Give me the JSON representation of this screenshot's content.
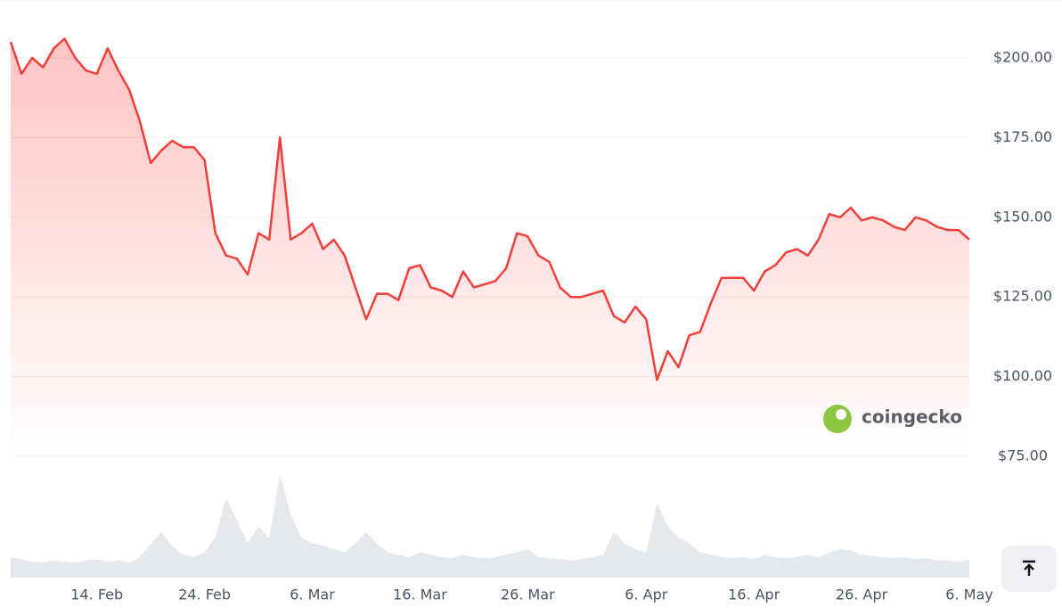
{
  "chart_data": [
    {
      "type": "line",
      "color": "#f23f3a",
      "categories": [
        null,
        null,
        null,
        null,
        null,
        null,
        null,
        null,
        "14. Feb",
        null,
        null,
        null,
        null,
        null,
        null,
        null,
        null,
        null,
        "24. Feb",
        null,
        null,
        null,
        null,
        null,
        null,
        null,
        null,
        null,
        "6. Mar",
        null,
        null,
        null,
        null,
        null,
        null,
        null,
        null,
        null,
        "16. Mar",
        null,
        null,
        null,
        null,
        null,
        null,
        null,
        null,
        null,
        "26. Mar",
        null,
        null,
        null,
        null,
        null,
        null,
        null,
        null,
        null,
        null,
        "6. Apr",
        null,
        null,
        null,
        null,
        null,
        null,
        null,
        null,
        null,
        "16. Apr",
        null,
        null,
        null,
        null,
        null,
        null,
        null,
        null,
        null,
        "26. Apr",
        null,
        null,
        null,
        null,
        null,
        null,
        null,
        null,
        null,
        "6. May"
      ],
      "values": [
        205,
        195,
        200,
        197,
        203,
        206,
        200,
        196,
        195,
        203,
        196,
        190,
        180,
        167,
        171,
        174,
        172,
        172,
        168,
        145,
        138,
        137,
        132,
        145,
        143,
        175,
        143,
        145,
        148,
        140,
        143,
        138,
        128,
        118,
        126,
        126,
        124,
        134,
        135,
        128,
        127,
        125,
        133,
        128,
        129,
        130,
        134,
        145,
        144,
        138,
        136,
        128,
        125,
        125,
        126,
        127,
        119,
        117,
        122,
        118,
        99,
        108,
        103,
        113,
        114,
        123,
        131,
        131,
        131,
        127,
        133,
        135,
        139,
        140,
        138,
        143,
        151,
        150,
        153,
        149,
        150,
        149,
        147,
        146,
        150,
        149,
        147,
        146,
        146,
        143
      ],
      "ylim": [
        75,
        212
      ],
      "yticks": [
        {
          "value": 75,
          "label": "$75.00"
        },
        {
          "value": 100,
          "label": "$100.00"
        },
        {
          "value": 125,
          "label": "$125.00"
        },
        {
          "value": 150,
          "label": "$150.00"
        },
        {
          "value": 175,
          "label": "$175.00"
        },
        {
          "value": 200,
          "label": "$200.00"
        }
      ],
      "grid": true
    },
    {
      "type": "area",
      "color": "#e5e9ee",
      "values": [
        18,
        16,
        14,
        13,
        15,
        14,
        13,
        15,
        16,
        14,
        15,
        13,
        18,
        30,
        40,
        28,
        20,
        18,
        22,
        35,
        70,
        50,
        30,
        45,
        35,
        90,
        55,
        35,
        30,
        28,
        25,
        22,
        30,
        40,
        30,
        22,
        20,
        18,
        22,
        20,
        18,
        17,
        20,
        18,
        17,
        18,
        20,
        22,
        25,
        18,
        17,
        16,
        15,
        16,
        18,
        20,
        40,
        30,
        25,
        22,
        65,
        45,
        35,
        30,
        22,
        20,
        18,
        17,
        18,
        16,
        20,
        18,
        17,
        18,
        20,
        18,
        22,
        25,
        24,
        20,
        19,
        18,
        17,
        18,
        16,
        17,
        15,
        15,
        14,
        16
      ],
      "ylim": [
        0,
        100
      ]
    }
  ],
  "watermark": "coingecko"
}
